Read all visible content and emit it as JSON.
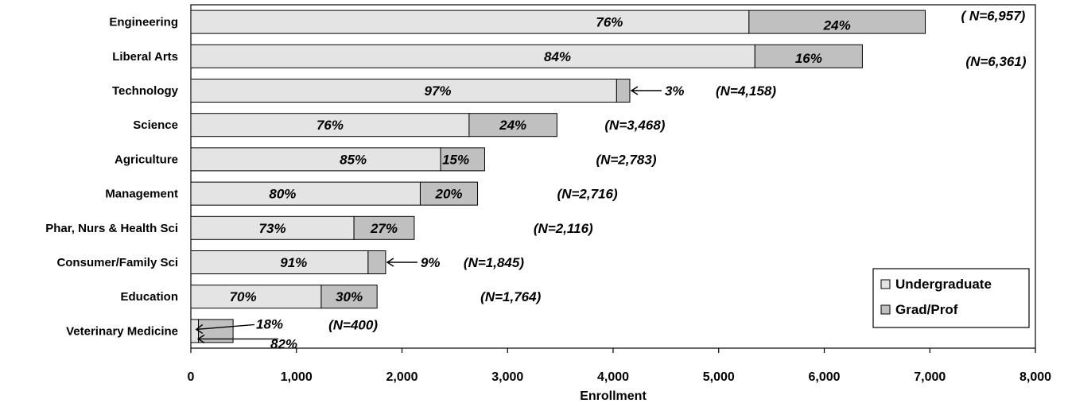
{
  "chart_data": {
    "type": "bar",
    "orientation": "horizontal",
    "stacked": true,
    "xlabel": "Enrollment",
    "xlim": [
      0,
      8000
    ],
    "xticks": [
      "0",
      "1,000",
      "2,000",
      "3,000",
      "4,000",
      "5,000",
      "6,000",
      "7,000",
      "8,000"
    ],
    "grid": false,
    "legend_position": "bottom-right",
    "categories": [
      "Engineering",
      "Liberal Arts",
      "Technology",
      "Science",
      "Agriculture",
      "Management",
      "Phar, Nurs & Health Sci",
      "Consumer/Family Sci",
      "Education",
      "Veterinary Medicine"
    ],
    "totals": [
      6957,
      6361,
      4158,
      3468,
      2783,
      2716,
      2116,
      1845,
      1764,
      400
    ],
    "total_labels": [
      "( N=6,957)",
      "(N=6,361)",
      "(N=4,158)",
      "(N=3,468)",
      "(N=2,783)",
      "(N=2,716)",
      "(N=2,116)",
      "(N=1,845)",
      "(N=1,764)",
      "(N=400)"
    ],
    "series": [
      {
        "name": "Undergraduate",
        "color": "#e4e4e4",
        "values": [
          5287,
          5343,
          4033,
          2636,
          2366,
          2173,
          1545,
          1679,
          1235,
          72
        ],
        "pct_labels": [
          "76%",
          "84%",
          "97%",
          "76%",
          "85%",
          "80%",
          "73%",
          "91%",
          "70%",
          "18%"
        ]
      },
      {
        "name": "Grad/Prof",
        "color": "#c0c0c0",
        "values": [
          1670,
          1018,
          125,
          832,
          417,
          543,
          571,
          166,
          529,
          328
        ],
        "pct_labels": [
          "24%",
          "16%",
          "3%",
          "24%",
          "15%",
          "20%",
          "27%",
          "9%",
          "30%",
          "82%"
        ]
      }
    ]
  }
}
